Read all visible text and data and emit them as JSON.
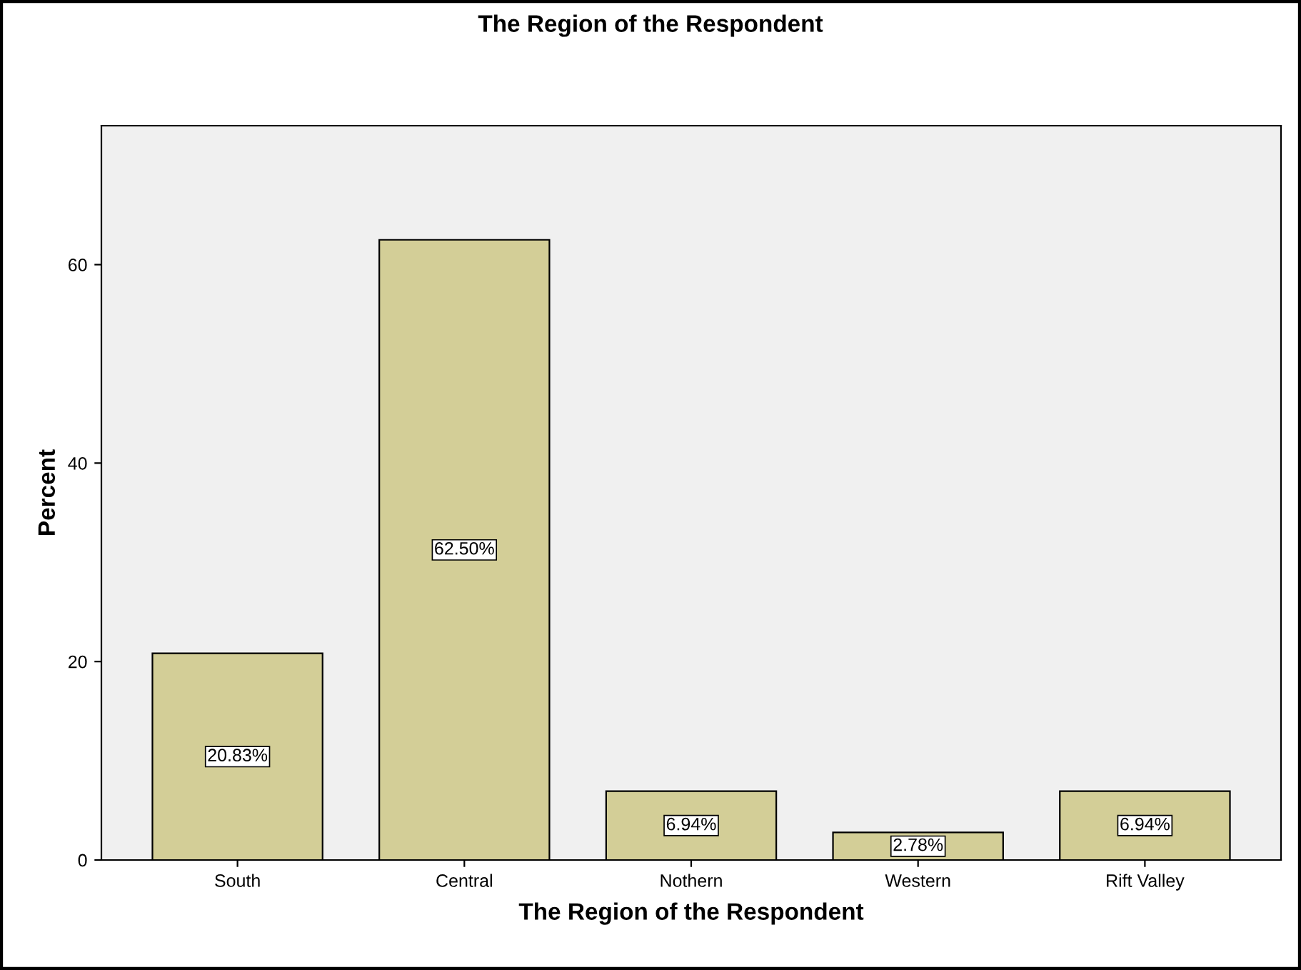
{
  "chart_data": {
    "type": "bar",
    "title": "The Region of the Respondent",
    "xlabel": "The Region of the Respondent",
    "ylabel": "Percent",
    "categories": [
      "South",
      "Central",
      "Nothern",
      "Western",
      "Rift Valley"
    ],
    "values": [
      20.83,
      62.5,
      6.94,
      2.78,
      6.94
    ],
    "value_labels": [
      "20.83%",
      "62.50%",
      "6.94%",
      "2.78%",
      "6.94%"
    ],
    "color": "#d3ce97",
    "ylim": [
      0,
      74
    ],
    "yticks": [
      0,
      20,
      40,
      60
    ],
    "grid": false,
    "legend": false
  }
}
